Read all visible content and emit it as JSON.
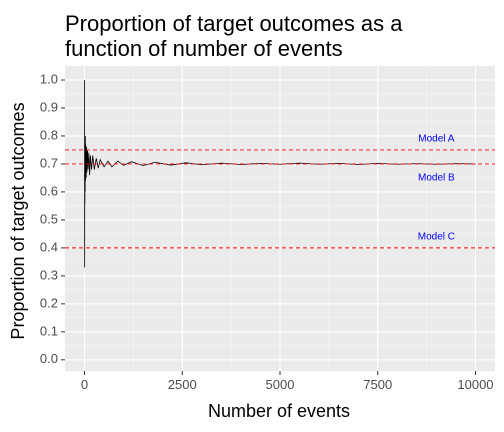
{
  "chart_data": {
    "type": "line",
    "title_lines": [
      "Proportion of target outcomes as a",
      "function of number of events"
    ],
    "xlabel": "Number of events",
    "ylabel": "Proportion of target outcomes",
    "xlim": [
      -500,
      10500
    ],
    "ylim": [
      -0.04,
      1.05
    ],
    "x_ticks": [
      0,
      2500,
      5000,
      7500,
      10000
    ],
    "x_tick_labels": [
      "0",
      "2500",
      "5000",
      "7500",
      "10000"
    ],
    "y_ticks": [
      0.0,
      0.1,
      0.2,
      0.3,
      0.4,
      0.5,
      0.6,
      0.7,
      0.8,
      0.9,
      1.0
    ],
    "y_tick_labels": [
      "0.0",
      "0.1",
      "0.2",
      "0.3",
      "0.4",
      "0.5",
      "0.6",
      "0.7",
      "0.8",
      "0.9",
      "1.0"
    ],
    "grid": true,
    "background": "#ebebeb",
    "line_color": "#000000",
    "reference_color": "#ff0000",
    "annotation_color": "#0000ff",
    "series": [
      {
        "values": [
          [
            1,
            1.0
          ],
          [
            2,
            0.5
          ],
          [
            3,
            0.33
          ],
          [
            4,
            0.5
          ],
          [
            5,
            0.6
          ],
          [
            7,
            0.71
          ],
          [
            9,
            0.56
          ],
          [
            12,
            0.75
          ],
          [
            15,
            0.6
          ],
          [
            20,
            0.8
          ],
          [
            25,
            0.64
          ],
          [
            30,
            0.77
          ],
          [
            40,
            0.65
          ],
          [
            50,
            0.76
          ],
          [
            60,
            0.67
          ],
          [
            75,
            0.75
          ],
          [
            90,
            0.68
          ],
          [
            110,
            0.74
          ],
          [
            130,
            0.66
          ],
          [
            150,
            0.73
          ],
          [
            180,
            0.68
          ],
          [
            210,
            0.73
          ],
          [
            250,
            0.68
          ],
          [
            300,
            0.72
          ],
          [
            350,
            0.685
          ],
          [
            400,
            0.715
          ],
          [
            500,
            0.69
          ],
          [
            600,
            0.71
          ],
          [
            700,
            0.69
          ],
          [
            850,
            0.71
          ],
          [
            1000,
            0.695
          ],
          [
            1200,
            0.708
          ],
          [
            1500,
            0.694
          ],
          [
            1800,
            0.706
          ],
          [
            2200,
            0.696
          ],
          [
            2600,
            0.704
          ],
          [
            3000,
            0.697
          ],
          [
            3500,
            0.703
          ],
          [
            4000,
            0.698
          ],
          [
            4500,
            0.702
          ],
          [
            5000,
            0.699
          ],
          [
            5500,
            0.703
          ],
          [
            6000,
            0.699
          ],
          [
            6500,
            0.702
          ],
          [
            7000,
            0.698
          ],
          [
            7500,
            0.702
          ],
          [
            8000,
            0.699
          ],
          [
            8500,
            0.701
          ],
          [
            9000,
            0.699
          ],
          [
            9500,
            0.701
          ],
          [
            10000,
            0.7
          ]
        ]
      }
    ],
    "reference_lines": [
      {
        "y": 0.75,
        "label": "Model A"
      },
      {
        "y": 0.7,
        "label": "Model B"
      },
      {
        "y": 0.4,
        "label": "Model C"
      }
    ],
    "annotations": [
      {
        "text": "Model A",
        "x": 9000,
        "y": 0.79
      },
      {
        "text": "Model B",
        "x": 9000,
        "y": 0.65
      },
      {
        "text": "Model C",
        "x": 9000,
        "y": 0.44
      }
    ]
  }
}
